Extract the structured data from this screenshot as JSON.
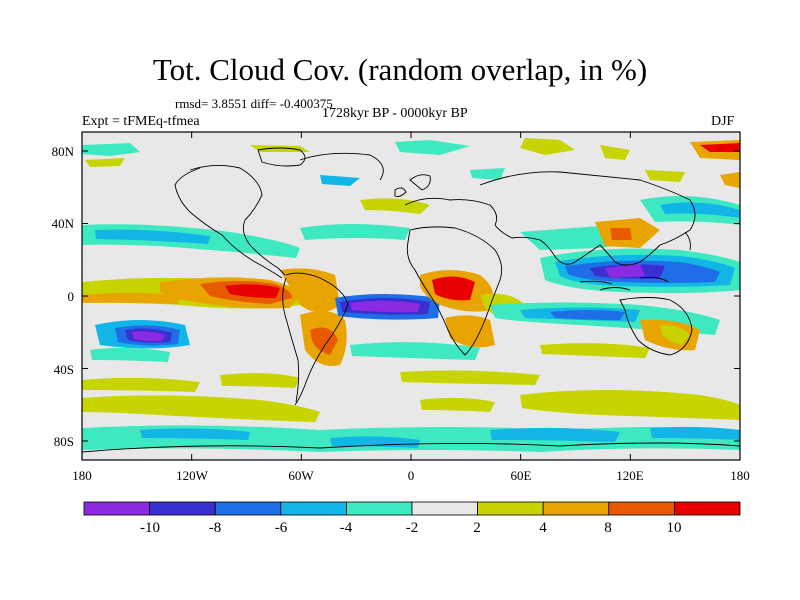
{
  "title": "Tot. Cloud Cov. (random overlap, in %)",
  "stats": "rmsd= 3.8551 diff= -0.400375",
  "experiment": "Expt = tFMEq-tfmea",
  "period": "1728kyr BP - 0000kyr BP",
  "season": "DJF",
  "y_ticks": [
    "80N",
    "40N",
    "0",
    "40S",
    "80S"
  ],
  "x_ticks": [
    "180",
    "120W",
    "60W",
    "0",
    "60E",
    "120E",
    "180"
  ],
  "colorbar": {
    "labels": [
      "-10",
      "-8",
      "-6",
      "-4",
      "-2",
      "2",
      "4",
      "8",
      "10"
    ],
    "colors": [
      "#8a2be2",
      "#3a2fd0",
      "#1e6ee8",
      "#12b6e6",
      "#3ee8c0",
      "#e8e8e8",
      "#c8d400",
      "#e8a400",
      "#e85a00",
      "#e80000"
    ]
  }
}
